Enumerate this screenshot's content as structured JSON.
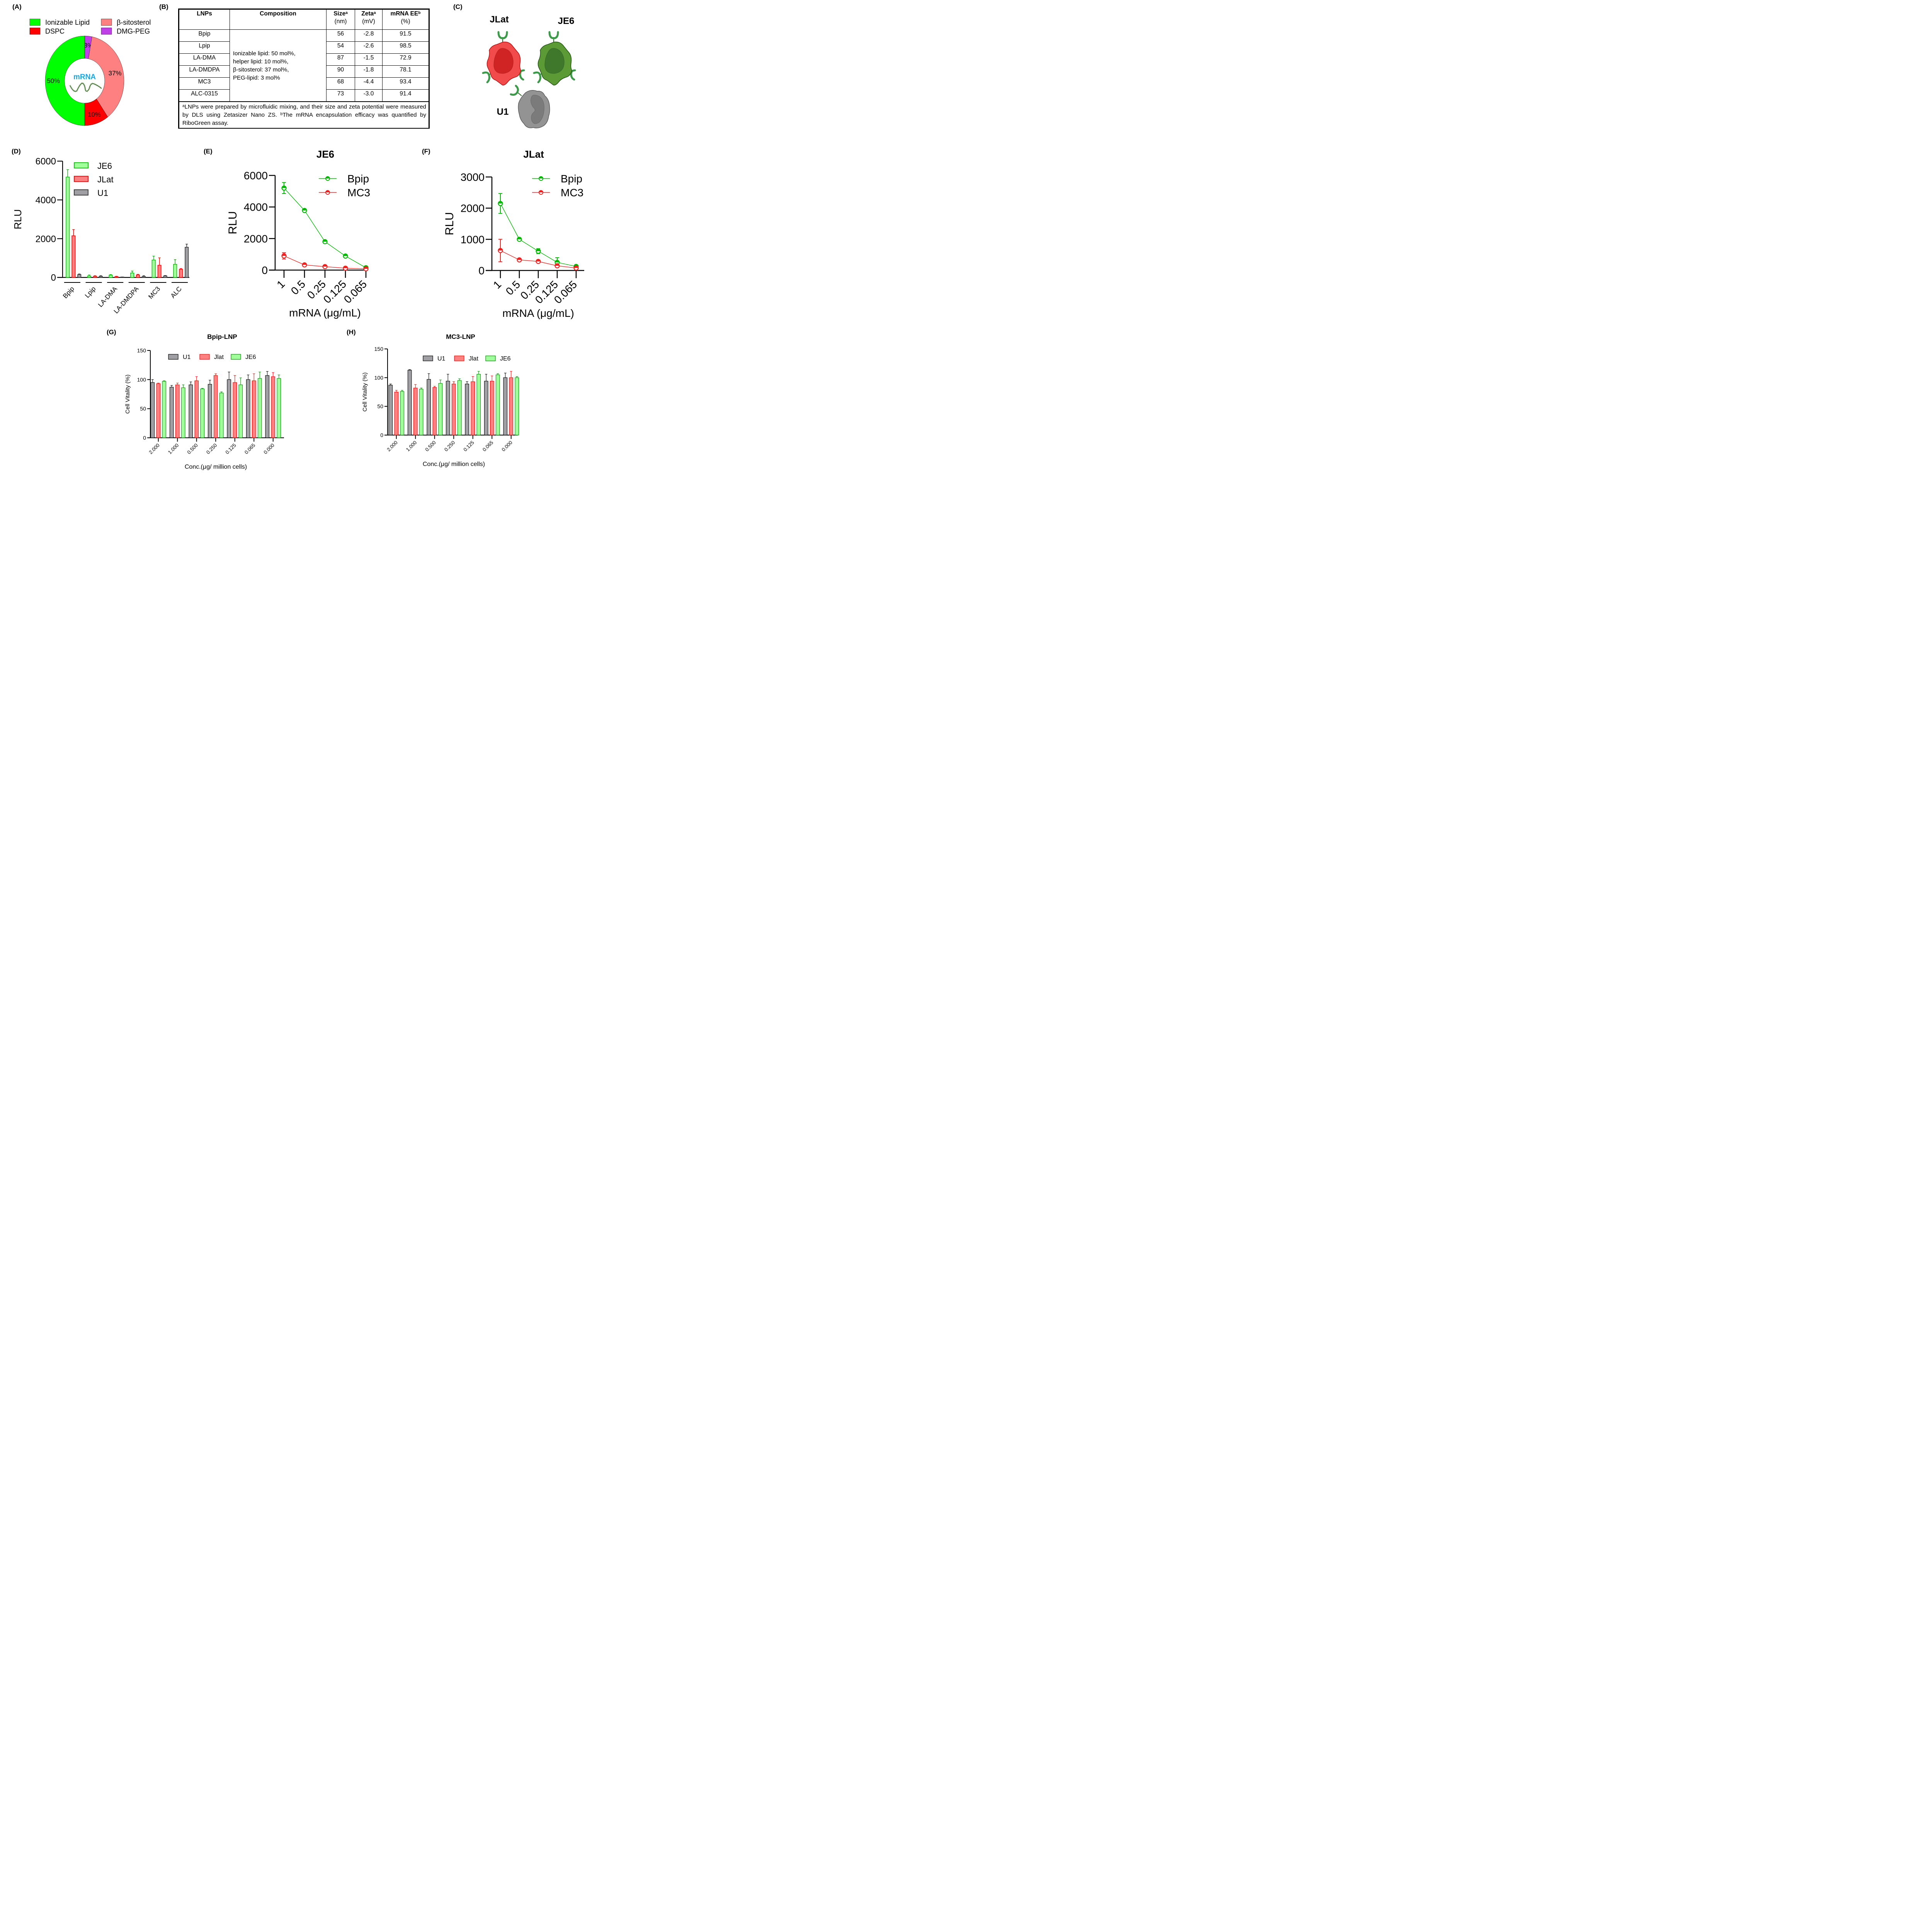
{
  "panel_labels": {
    "A": "(A)",
    "B": "(B)",
    "C": "(C)",
    "D": "(D)",
    "E": "(E)",
    "F": "(F)",
    "G": "(G)",
    "H": "(H)"
  },
  "colors": {
    "ionizable": "#00FF00",
    "dspc": "#FF0000",
    "sitosterol": "#FF8080",
    "dmgpeg": "#C040E8",
    "mrna_text": "#1AA7E0",
    "je6_fill": "#A0FF9A",
    "je6_stroke": "#00C000",
    "jlat_fill": "#FF8080",
    "jlat_stroke": "#FF0000",
    "u1_fill": "#A0A0A4",
    "u1_stroke": "#303030",
    "line_green": "#00B800",
    "line_red": "#EE2020",
    "g_je6_stroke": "#008A00"
  },
  "cells": {
    "jlat_label": "JLat",
    "je6_label": "JE6",
    "u1_label": "U1",
    "jlat_colors": {
      "body": "#F24B4B",
      "nucleus": "#D02424",
      "outline": "#B01010"
    },
    "je6_colors": {
      "body": "#5C9A36",
      "nucleus": "#3F772B",
      "outline": "#1E5010"
    },
    "u1_colors": {
      "body": "#939393",
      "nucleus": "#7B7B7B",
      "outline": "#5A5A5A"
    },
    "receptor_color": "#3C9A4A"
  },
  "table": {
    "headers": [
      {
        "main": "LNPs",
        "sup": "",
        "sub": ""
      },
      {
        "main": "Composition",
        "sup": "",
        "sub": ""
      },
      {
        "main": "Size",
        "sup": "a",
        "sub": "(nm)"
      },
      {
        "main": "Zeta",
        "sup": "a",
        "sub": "(mV)"
      },
      {
        "main": "mRNA EE",
        "sup": "b",
        "sub": "(%)"
      }
    ],
    "composition_lines": [
      "Ionizable lipid: 50 mol%,",
      "helper lipid: 10 mol%,",
      "β-sitosterol: 37 mol%,",
      "PEG-lipid: 3 mol%"
    ],
    "rows": [
      {
        "lnp": "Bpip",
        "size": "56",
        "zeta": "-2.8",
        "ee": "91.5"
      },
      {
        "lnp": "Lpip",
        "size": "54",
        "zeta": "-2.6",
        "ee": "98.5"
      },
      {
        "lnp": "LA-DMA",
        "size": "87",
        "zeta": "-1.5",
        "ee": "72.9"
      },
      {
        "lnp": "LA-DMDPA",
        "size": "90",
        "zeta": "-1.8",
        "ee": "78.1"
      },
      {
        "lnp": "MC3",
        "size": "68",
        "zeta": "-4.4",
        "ee": "93.4"
      },
      {
        "lnp": "ALC-0315",
        "size": "73",
        "zeta": "-3.0",
        "ee": "91.4"
      }
    ],
    "footnote_a_mark": "a",
    "footnote_a": "LNPs were prepared by microfluidic mixing, and their size and zeta potential were measured by DLS using Zetasizer Nano ZS. ",
    "footnote_b_mark": "b",
    "footnote_b": "The mRNA encapsulation efficacy was quantified by RiboGreen assay."
  },
  "chart_data": [
    {
      "id": "A",
      "type": "pie",
      "variant": "donut",
      "center_label": "mRNA",
      "slices": [
        {
          "name": "DMG-PEG",
          "value": 3,
          "label": "3%",
          "color": "#C040E8"
        },
        {
          "name": "β-sitosterol",
          "value": 37,
          "label": "37%",
          "color": "#FF8080"
        },
        {
          "name": "DSPC",
          "value": 10,
          "label": "10%",
          "color": "#FF0000"
        },
        {
          "name": "Ionizable Lipid",
          "value": 50,
          "label": "50%",
          "color": "#00FF00"
        }
      ],
      "legend": [
        {
          "name": "Ionizable Lipid",
          "color": "#00FF00"
        },
        {
          "name": "β-sitosterol",
          "color": "#FF8080"
        },
        {
          "name": "DSPC",
          "color": "#FF0000"
        },
        {
          "name": "DMG-PEG",
          "color": "#C040E8"
        }
      ],
      "legend_position": "top"
    },
    {
      "id": "D",
      "type": "bar",
      "categories": [
        "Bpip",
        "Lpip",
        "LA-DMA",
        "LA-DMDPA",
        "MC3",
        "ALC"
      ],
      "series": [
        {
          "name": "JE6",
          "values": [
            5180,
            80,
            120,
            230,
            900,
            680
          ],
          "errors": [
            380,
            50,
            30,
            100,
            200,
            240
          ]
        },
        {
          "name": "JLat",
          "values": [
            2150,
            60,
            40,
            130,
            630,
            420
          ],
          "errors": [
            320,
            30,
            20,
            30,
            380,
            40
          ]
        },
        {
          "name": "U1",
          "values": [
            150,
            60,
            20,
            50,
            80,
            1560
          ],
          "errors": [
            30,
            30,
            5,
            40,
            20,
            160
          ]
        }
      ],
      "title": "",
      "xlabel": "",
      "ylabel": "RLU",
      "ylim": [
        0,
        6000
      ],
      "yticks": [
        0,
        2000,
        4000,
        6000
      ],
      "legend_position": "top-right",
      "grid": false
    },
    {
      "id": "E",
      "type": "line",
      "title": "JE6",
      "x": [
        "1",
        "0.5",
        "0.25",
        "0.125",
        "0.065"
      ],
      "series": [
        {
          "name": "Bpip",
          "values": [
            5200,
            3780,
            1800,
            890,
            150
          ],
          "errors": [
            350,
            0,
            0,
            0,
            0
          ]
        },
        {
          "name": "MC3",
          "values": [
            900,
            330,
            220,
            120,
            80
          ],
          "errors": [
            200,
            0,
            0,
            0,
            0
          ]
        }
      ],
      "xlabel": "mRNA (μg/mL)",
      "ylabel": "RLU",
      "ylim": [
        0,
        6000
      ],
      "yticks": [
        0,
        2000,
        4000,
        6000
      ],
      "legend_position": "top-right",
      "grid": false
    },
    {
      "id": "F",
      "type": "line",
      "title": "JLat",
      "x": [
        "1",
        "0.5",
        "0.25",
        "0.125",
        "0.065"
      ],
      "series": [
        {
          "name": "Bpip",
          "values": [
            2150,
            1000,
            620,
            260,
            130
          ],
          "errors": [
            320,
            0,
            80,
            150,
            0
          ]
        },
        {
          "name": "MC3",
          "values": [
            640,
            340,
            290,
            150,
            80
          ],
          "errors": [
            360,
            0,
            0,
            0,
            0
          ]
        }
      ],
      "xlabel": "mRNA (μg/mL)",
      "ylabel": "RLU",
      "ylim": [
        0,
        3000
      ],
      "yticks": [
        0,
        1000,
        2000,
        3000
      ],
      "legend_position": "top-right",
      "grid": false
    },
    {
      "id": "G",
      "type": "bar",
      "title": "Bpip-LNP",
      "categories": [
        "2.000",
        "1.000",
        "0.500",
        "0.250",
        "0.125",
        "0.065",
        "0.000"
      ],
      "series": [
        {
          "name": "U1",
          "values": [
            95,
            87,
            91,
            92,
            100,
            100,
            107
          ],
          "errors": [
            5,
            3,
            5,
            7,
            13,
            8,
            7
          ]
        },
        {
          "name": "Jlat",
          "values": [
            93,
            91,
            98,
            107,
            95,
            98,
            105
          ],
          "errors": [
            1,
            3,
            7,
            3,
            12,
            12,
            7
          ]
        },
        {
          "name": "JE6",
          "values": [
            97,
            86,
            84,
            77,
            91,
            102,
            102
          ],
          "errors": [
            1,
            5,
            1,
            2,
            12,
            11,
            6
          ]
        }
      ],
      "xlabel": "Conc.(μg/ million cells)",
      "ylabel": "Cell Vitality (%)",
      "ylim": [
        0,
        150
      ],
      "yticks": [
        0,
        50,
        100,
        150
      ],
      "legend_position": "top",
      "grid": false
    },
    {
      "id": "H",
      "type": "bar",
      "title": "MC3-LNP",
      "categories": [
        "2.000",
        "1.000",
        "0.500",
        "0.250",
        "0.125",
        "0.065",
        "0.000"
      ],
      "series": [
        {
          "name": "U1",
          "values": [
            87,
            113,
            97,
            94,
            89,
            94,
            100
          ],
          "errors": [
            2,
            1,
            10,
            12,
            4,
            12,
            8
          ]
        },
        {
          "name": "Jlat",
          "values": [
            75,
            82,
            83,
            89,
            93,
            94,
            100
          ],
          "errors": [
            3,
            6,
            2,
            4,
            9,
            9,
            11
          ]
        },
        {
          "name": "JE6",
          "values": [
            76,
            80,
            90,
            95,
            106,
            105,
            100
          ],
          "errors": [
            2,
            2,
            6,
            3,
            5,
            2,
            2
          ]
        }
      ],
      "xlabel": "Conc.(μg/ million cells)",
      "ylabel": "Cell Vitality (%)",
      "ylim": [
        0,
        150
      ],
      "yticks": [
        0,
        50,
        100,
        150
      ],
      "legend_position": "top-right",
      "grid": false
    }
  ]
}
